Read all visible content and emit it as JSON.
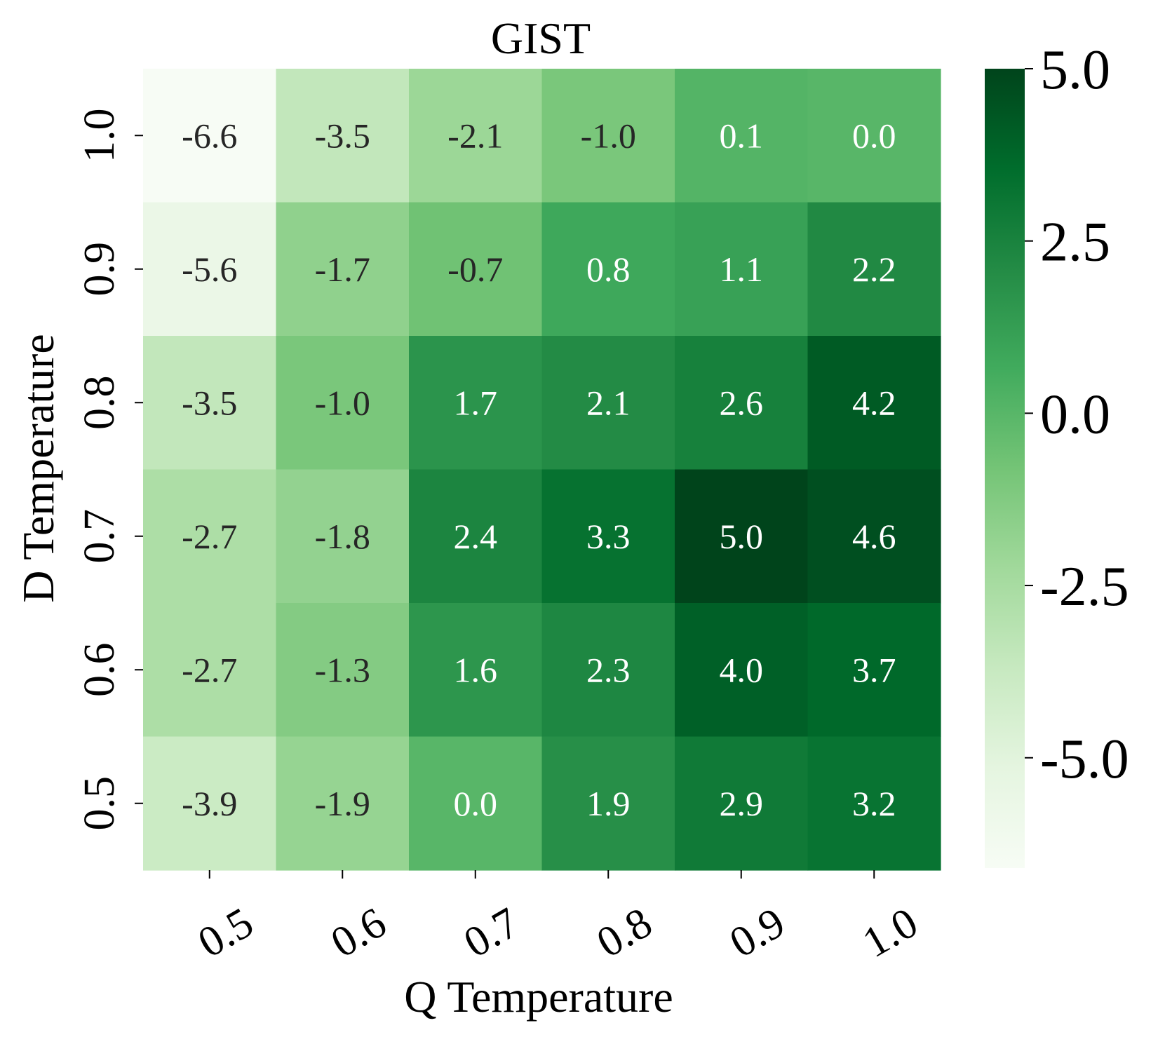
{
  "chart_data": {
    "type": "heatmap",
    "title": "GIST",
    "xlabel": "Q Temperature",
    "ylabel": "D Temperature",
    "x_categories": [
      "0.5",
      "0.6",
      "0.7",
      "0.8",
      "0.9",
      "1.0"
    ],
    "y_categories": [
      "1.0",
      "0.9",
      "0.8",
      "0.7",
      "0.6",
      "0.5"
    ],
    "values": [
      [
        -6.6,
        -3.5,
        -2.1,
        -1.0,
        0.1,
        0.0
      ],
      [
        -5.6,
        -1.7,
        -0.7,
        0.8,
        1.1,
        2.2
      ],
      [
        -3.5,
        -1.0,
        1.7,
        2.1,
        2.6,
        4.2
      ],
      [
        -2.7,
        -1.8,
        2.4,
        3.3,
        5.0,
        4.6
      ],
      [
        -2.7,
        -1.3,
        1.6,
        2.3,
        4.0,
        3.7
      ],
      [
        -3.9,
        -1.9,
        0.0,
        1.9,
        2.9,
        3.2
      ]
    ],
    "value_range": [
      -6.6,
      5.0
    ],
    "colormap": "Greens",
    "colorbar": {
      "ticks": [
        5.0,
        2.5,
        0.0,
        -2.5,
        -5.0
      ],
      "tick_labels": [
        "5.0",
        "2.5",
        "0.0",
        "-2.5",
        "-5.0"
      ]
    },
    "annotated": true,
    "grid": false,
    "legend": "colorbar-right"
  },
  "colors": {
    "annotation_dark": "#262626",
    "annotation_light": "#ffffff",
    "scale_low": "#f7fcf5",
    "scale_high": "#00441b"
  }
}
